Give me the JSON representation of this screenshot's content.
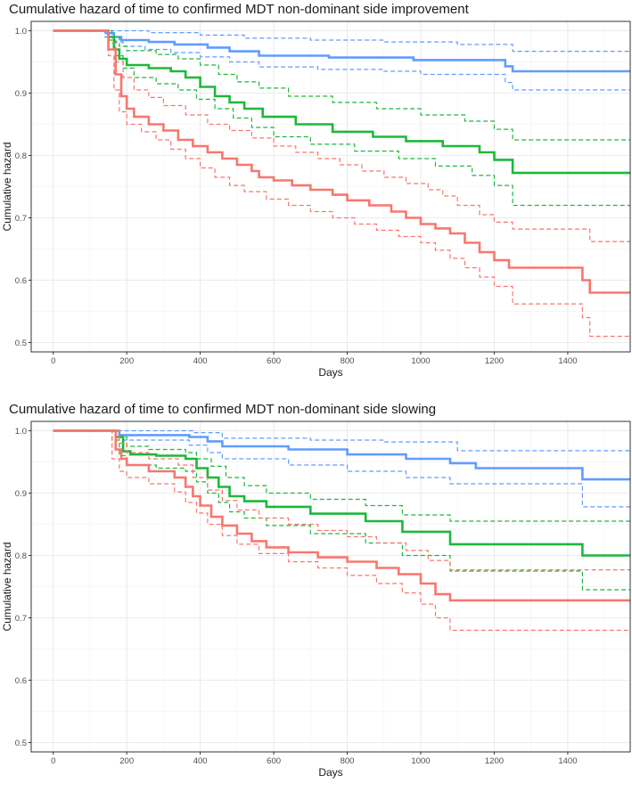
{
  "colors": {
    "blue": "#619CFF",
    "green": "#1DB83A",
    "red": "#F8766D",
    "grid_major": "#ebebeb",
    "grid_minor": "#f5f5f5",
    "frame": "#333333"
  },
  "chart_data": [
    {
      "type": "line",
      "title": "Cumulative hazard of time to confirmed MDT non-dominant side improvement",
      "xlabel": "Days",
      "ylabel": "Cumulative hazard",
      "xlim": [
        -60,
        1570
      ],
      "ylim": [
        0.485,
        1.015
      ],
      "xticks": [
        0,
        200,
        400,
        600,
        800,
        1000,
        1200,
        1400
      ],
      "yticks": [
        0.5,
        0.6,
        0.7,
        0.8,
        0.9,
        1.0
      ],
      "ytick_labels": [
        "0.5",
        "0.6",
        "0.7",
        "0.8",
        "0.9",
        "1.0"
      ],
      "xtick_labels": [
        "0",
        "200",
        "400",
        "600",
        "800",
        "1000",
        "1200",
        "1400"
      ],
      "series": [
        {
          "name": "blue",
          "color": "blue",
          "style": "solid",
          "x": [
            0,
            130,
            145,
            165,
            185,
            260,
            330,
            420,
            480,
            560,
            750,
            980,
            1230,
            1250,
            1570
          ],
          "y": [
            1.0,
            1.0,
            0.996,
            0.99,
            0.985,
            0.982,
            0.978,
            0.973,
            0.967,
            0.96,
            0.957,
            0.953,
            0.943,
            0.935,
            0.935
          ]
        },
        {
          "name": "blue-upper",
          "color": "blue",
          "style": "dashed",
          "x": [
            0,
            180,
            260,
            400,
            520,
            700,
            900,
            1100,
            1250,
            1570
          ],
          "y": [
            1.0,
            1.0,
            0.997,
            0.993,
            0.988,
            0.985,
            0.982,
            0.978,
            0.967,
            0.967
          ]
        },
        {
          "name": "blue-lower",
          "color": "blue",
          "style": "dashed",
          "x": [
            0,
            110,
            140,
            170,
            190,
            250,
            320,
            400,
            480,
            560,
            720,
            900,
            1000,
            1230,
            1250,
            1570
          ],
          "y": [
            1.0,
            1.0,
            0.99,
            0.982,
            0.975,
            0.97,
            0.965,
            0.958,
            0.95,
            0.942,
            0.938,
            0.935,
            0.93,
            0.917,
            0.905,
            0.905
          ]
        },
        {
          "name": "green",
          "color": "green",
          "style": "solid",
          "x": [
            0,
            120,
            150,
            165,
            180,
            200,
            260,
            320,
            360,
            400,
            440,
            480,
            520,
            570,
            660,
            760,
            870,
            960,
            1060,
            1160,
            1200,
            1250,
            1570
          ],
          "y": [
            1.0,
            1.0,
            0.99,
            0.97,
            0.955,
            0.945,
            0.94,
            0.935,
            0.925,
            0.91,
            0.895,
            0.885,
            0.875,
            0.862,
            0.85,
            0.838,
            0.83,
            0.823,
            0.815,
            0.805,
            0.793,
            0.772,
            0.772
          ]
        },
        {
          "name": "green-upper",
          "color": "green",
          "style": "dashed",
          "x": [
            0,
            130,
            160,
            180,
            200,
            280,
            340,
            400,
            450,
            500,
            560,
            640,
            760,
            880,
            1000,
            1120,
            1200,
            1250,
            1570
          ],
          "y": [
            1.0,
            1.0,
            0.99,
            0.975,
            0.968,
            0.962,
            0.955,
            0.945,
            0.93,
            0.918,
            0.908,
            0.895,
            0.885,
            0.875,
            0.865,
            0.855,
            0.842,
            0.825,
            0.825
          ]
        },
        {
          "name": "green-lower",
          "color": "green",
          "style": "dashed",
          "x": [
            0,
            120,
            150,
            170,
            190,
            220,
            280,
            340,
            390,
            440,
            490,
            540,
            600,
            700,
            820,
            940,
            1040,
            1140,
            1200,
            1250,
            1570
          ],
          "y": [
            1.0,
            1.0,
            0.985,
            0.96,
            0.94,
            0.925,
            0.915,
            0.905,
            0.89,
            0.875,
            0.86,
            0.845,
            0.83,
            0.818,
            0.807,
            0.795,
            0.783,
            0.768,
            0.752,
            0.72,
            0.72
          ]
        },
        {
          "name": "red",
          "color": "red",
          "style": "solid",
          "x": [
            0,
            130,
            150,
            170,
            185,
            200,
            220,
            260,
            300,
            340,
            380,
            420,
            460,
            500,
            540,
            560,
            600,
            650,
            700,
            760,
            800,
            860,
            920,
            960,
            1000,
            1040,
            1080,
            1120,
            1160,
            1200,
            1240,
            1440,
            1460,
            1570
          ],
          "y": [
            1.0,
            1.0,
            0.97,
            0.93,
            0.895,
            0.875,
            0.862,
            0.85,
            0.84,
            0.825,
            0.815,
            0.805,
            0.795,
            0.785,
            0.775,
            0.765,
            0.76,
            0.752,
            0.745,
            0.737,
            0.728,
            0.72,
            0.71,
            0.7,
            0.69,
            0.683,
            0.675,
            0.66,
            0.645,
            0.632,
            0.62,
            0.6,
            0.58,
            0.58
          ]
        },
        {
          "name": "red-upper",
          "color": "red",
          "style": "dashed",
          "x": [
            0,
            130,
            150,
            170,
            190,
            220,
            260,
            300,
            360,
            420,
            480,
            540,
            600,
            660,
            720,
            780,
            840,
            900,
            960,
            1020,
            1060,
            1100,
            1160,
            1200,
            1250,
            1440,
            1460,
            1570
          ],
          "y": [
            1.0,
            1.0,
            0.98,
            0.95,
            0.925,
            0.905,
            0.893,
            0.88,
            0.865,
            0.85,
            0.84,
            0.828,
            0.815,
            0.805,
            0.795,
            0.785,
            0.775,
            0.765,
            0.755,
            0.745,
            0.735,
            0.72,
            0.705,
            0.693,
            0.682,
            0.682,
            0.662,
            0.662
          ]
        },
        {
          "name": "red-lower",
          "color": "red",
          "style": "dashed",
          "x": [
            0,
            130,
            150,
            165,
            180,
            200,
            240,
            280,
            320,
            360,
            400,
            440,
            480,
            520,
            580,
            640,
            700,
            760,
            820,
            880,
            940,
            1000,
            1040,
            1080,
            1120,
            1160,
            1200,
            1250,
            1440,
            1460,
            1570
          ],
          "y": [
            1.0,
            1.0,
            0.96,
            0.905,
            0.87,
            0.85,
            0.838,
            0.825,
            0.81,
            0.795,
            0.78,
            0.765,
            0.752,
            0.742,
            0.73,
            0.72,
            0.71,
            0.7,
            0.69,
            0.68,
            0.67,
            0.66,
            0.648,
            0.635,
            0.62,
            0.605,
            0.59,
            0.562,
            0.54,
            0.51,
            0.51
          ]
        }
      ]
    },
    {
      "type": "line",
      "title": "Cumulative hazard of time to confirmed MDT non-dominant side slowing",
      "xlabel": "Days",
      "ylabel": "Cumulative hazard",
      "xlim": [
        -60,
        1570
      ],
      "ylim": [
        0.485,
        1.015
      ],
      "xticks": [
        0,
        200,
        400,
        600,
        800,
        1000,
        1200,
        1400
      ],
      "yticks": [
        0.5,
        0.6,
        0.7,
        0.8,
        0.9,
        1.0
      ],
      "ytick_labels": [
        "0.5",
        "0.6",
        "0.7",
        "0.8",
        "0.9",
        "1.0"
      ],
      "xtick_labels": [
        "0",
        "200",
        "400",
        "600",
        "800",
        "1000",
        "1200",
        "1400"
      ],
      "series": [
        {
          "name": "blue",
          "color": "blue",
          "style": "solid",
          "x": [
            0,
            160,
            180,
            370,
            420,
            460,
            640,
            800,
            960,
            1080,
            1150,
            1430,
            1440,
            1570
          ],
          "y": [
            1.0,
            1.0,
            0.993,
            0.99,
            0.983,
            0.975,
            0.97,
            0.962,
            0.955,
            0.948,
            0.94,
            0.94,
            0.922,
            0.922
          ]
        },
        {
          "name": "blue-upper",
          "color": "blue",
          "style": "dashed",
          "x": [
            0,
            200,
            380,
            460,
            700,
            900,
            1100,
            1570
          ],
          "y": [
            1.0,
            1.0,
            0.997,
            0.988,
            0.985,
            0.982,
            0.968,
            0.968
          ]
        },
        {
          "name": "blue-lower",
          "color": "blue",
          "style": "dashed",
          "x": [
            0,
            150,
            180,
            370,
            420,
            460,
            640,
            800,
            960,
            1080,
            1430,
            1440,
            1570
          ],
          "y": [
            1.0,
            1.0,
            0.985,
            0.977,
            0.965,
            0.955,
            0.945,
            0.935,
            0.925,
            0.915,
            0.915,
            0.878,
            0.878
          ]
        },
        {
          "name": "green",
          "color": "green",
          "style": "solid",
          "x": [
            0,
            120,
            170,
            190,
            210,
            280,
            360,
            390,
            420,
            450,
            480,
            520,
            580,
            700,
            850,
            950,
            1080,
            1430,
            1440,
            1570
          ],
          "y": [
            1.0,
            1.0,
            0.99,
            0.967,
            0.962,
            0.96,
            0.955,
            0.94,
            0.925,
            0.91,
            0.895,
            0.887,
            0.878,
            0.867,
            0.855,
            0.838,
            0.818,
            0.818,
            0.8,
            0.8
          ]
        },
        {
          "name": "green-upper",
          "color": "green",
          "style": "dashed",
          "x": [
            0,
            130,
            180,
            200,
            260,
            360,
            390,
            430,
            470,
            520,
            580,
            700,
            850,
            950,
            1080,
            1570
          ],
          "y": [
            1.0,
            1.0,
            0.99,
            0.975,
            0.97,
            0.965,
            0.955,
            0.943,
            0.925,
            0.912,
            0.9,
            0.89,
            0.88,
            0.865,
            0.855,
            0.855
          ]
        },
        {
          "name": "green-lower",
          "color": "green",
          "style": "dashed",
          "x": [
            0,
            110,
            160,
            180,
            200,
            280,
            360,
            390,
            420,
            450,
            480,
            520,
            580,
            700,
            850,
            950,
            1080,
            1430,
            1440,
            1570
          ],
          "y": [
            1.0,
            1.0,
            0.985,
            0.96,
            0.945,
            0.94,
            0.935,
            0.918,
            0.9,
            0.885,
            0.87,
            0.86,
            0.848,
            0.835,
            0.82,
            0.8,
            0.775,
            0.775,
            0.745,
            0.745
          ]
        },
        {
          "name": "red",
          "color": "red",
          "style": "solid",
          "x": [
            0,
            120,
            170,
            185,
            200,
            260,
            330,
            360,
            380,
            400,
            430,
            460,
            500,
            540,
            580,
            640,
            720,
            800,
            880,
            940,
            1000,
            1040,
            1080,
            1570
          ],
          "y": [
            1.0,
            1.0,
            0.97,
            0.955,
            0.945,
            0.935,
            0.925,
            0.91,
            0.895,
            0.88,
            0.862,
            0.848,
            0.835,
            0.823,
            0.813,
            0.805,
            0.797,
            0.79,
            0.78,
            0.77,
            0.755,
            0.738,
            0.728,
            0.728
          ]
        },
        {
          "name": "red-upper",
          "color": "red",
          "style": "dashed",
          "x": [
            0,
            130,
            180,
            200,
            260,
            340,
            380,
            420,
            460,
            500,
            560,
            640,
            720,
            800,
            880,
            960,
            1020,
            1080,
            1570
          ],
          "y": [
            1.0,
            1.0,
            0.98,
            0.965,
            0.955,
            0.945,
            0.925,
            0.905,
            0.888,
            0.873,
            0.86,
            0.85,
            0.84,
            0.83,
            0.82,
            0.808,
            0.792,
            0.777,
            0.777
          ]
        },
        {
          "name": "red-lower",
          "color": "red",
          "style": "dashed",
          "x": [
            0,
            110,
            160,
            180,
            200,
            260,
            330,
            360,
            390,
            420,
            460,
            500,
            560,
            640,
            720,
            800,
            880,
            950,
            1000,
            1040,
            1080,
            1570
          ],
          "y": [
            1.0,
            1.0,
            0.955,
            0.935,
            0.925,
            0.915,
            0.902,
            0.885,
            0.868,
            0.85,
            0.832,
            0.818,
            0.803,
            0.79,
            0.78,
            0.768,
            0.755,
            0.74,
            0.722,
            0.7,
            0.68,
            0.68
          ]
        }
      ]
    }
  ]
}
